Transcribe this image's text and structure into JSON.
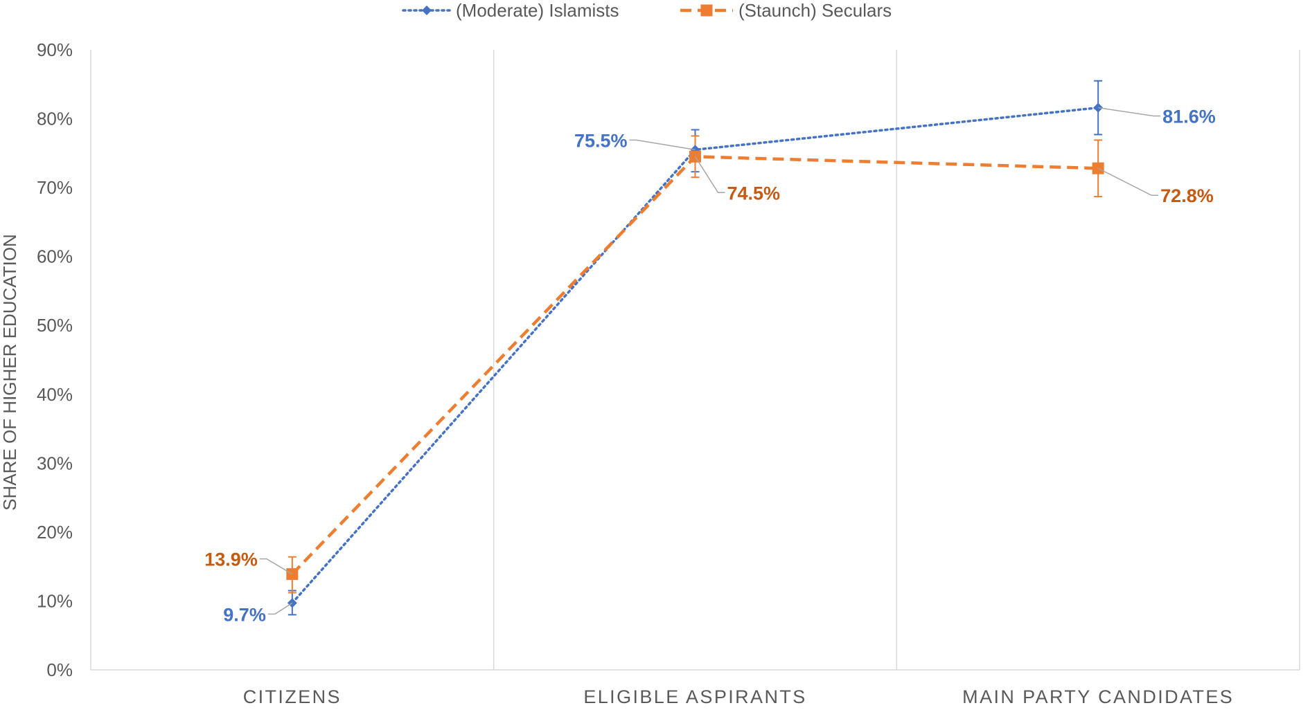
{
  "chart_data": {
    "type": "line",
    "categories": [
      "CITIZENS",
      "ELIGIBLE ASPIRANTS",
      "MAIN PARTY CANDIDATES"
    ],
    "ylabel": "SHARE OF HIGHER EDUCATION",
    "ylim": [
      0,
      90
    ],
    "yticks": [
      0,
      10,
      20,
      30,
      40,
      50,
      60,
      70,
      80,
      90
    ],
    "ytick_labels": [
      "0%",
      "10%",
      "20%",
      "30%",
      "40%",
      "50%",
      "60%",
      "70%",
      "80%",
      "90%"
    ],
    "legend_position": "top-center",
    "grid": "vertical-category-separators",
    "series": [
      {
        "name": "(Moderate) Islamists",
        "color": "#4472C4",
        "line_style": "dotted",
        "marker": "diamond",
        "values": [
          9.7,
          75.5,
          81.6
        ],
        "error_low": [
          8.0,
          72.3,
          77.7
        ],
        "error_high": [
          11.5,
          78.4,
          85.5
        ],
        "labels": [
          "9.7%",
          "75.5%",
          "81.6%"
        ],
        "label_color": "#4472C4"
      },
      {
        "name": "(Staunch) Seculars",
        "color": "#ED7D31",
        "line_style": "dashed",
        "marker": "square",
        "values": [
          13.9,
          74.5,
          72.8
        ],
        "error_low": [
          11.2,
          71.5,
          68.7
        ],
        "error_high": [
          16.4,
          77.5,
          76.9
        ],
        "labels": [
          "13.9%",
          "74.5%",
          "72.8%"
        ],
        "label_color": "#C55A11"
      }
    ]
  }
}
